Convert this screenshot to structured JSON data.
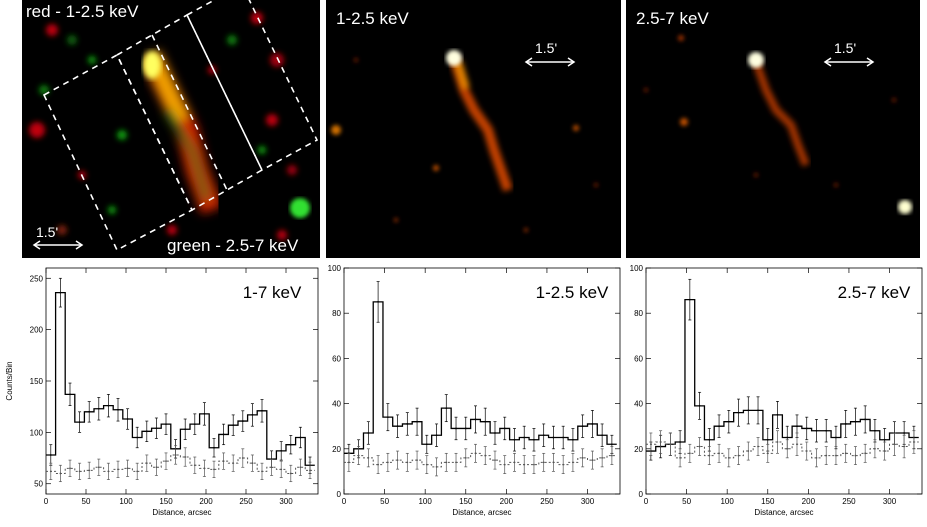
{
  "images": [
    {
      "id": "composite",
      "title": "red - 1-2.5 keV",
      "bottom_label": "green - 2.5-7 keV",
      "scale_label": "1.5'"
    },
    {
      "id": "soft",
      "title": "1-2.5 keV",
      "scale_label": "1.5'"
    },
    {
      "id": "hard",
      "title": "2.5-7 keV",
      "scale_label": "1.5'"
    }
  ],
  "chart_data": [
    {
      "type": "line",
      "label": "1-7 keV",
      "xlabel": "Distance, arcsec",
      "ylabel": "Counts/Bin",
      "xlim": [
        0,
        340
      ],
      "ylim": [
        40,
        260
      ],
      "xticks": [
        0,
        50,
        100,
        150,
        200,
        250,
        300
      ],
      "yticks": [
        50,
        100,
        150,
        200,
        250
      ],
      "bin_width": 12,
      "series": [
        {
          "name": "source",
          "style": "solid",
          "x": [
            0,
            12,
            24,
            36,
            48,
            60,
            72,
            84,
            96,
            108,
            120,
            132,
            144,
            156,
            168,
            180,
            192,
            204,
            216,
            228,
            240,
            252,
            264,
            276,
            288,
            300,
            312,
            324
          ],
          "values": [
            78,
            236,
            137,
            110,
            120,
            123,
            126,
            122,
            113,
            95,
            101,
            104,
            108,
            84,
            103,
            108,
            118,
            85,
            98,
            107,
            111,
            117,
            121,
            74,
            82,
            88,
            95,
            68
          ],
          "errors": [
            10,
            14,
            11,
            10,
            10,
            11,
            11,
            11,
            10,
            10,
            10,
            10,
            10,
            9,
            10,
            10,
            11,
            9,
            10,
            10,
            10,
            11,
            11,
            8,
            9,
            9,
            10,
            8
          ]
        },
        {
          "name": "background",
          "style": "dotted",
          "x": [
            0,
            12,
            24,
            36,
            48,
            60,
            72,
            84,
            96,
            108,
            120,
            132,
            144,
            156,
            168,
            180,
            192,
            204,
            216,
            228,
            240,
            252,
            264,
            276,
            288,
            300,
            312,
            324
          ],
          "values": [
            62,
            60,
            65,
            62,
            63,
            66,
            62,
            64,
            65,
            62,
            70,
            66,
            72,
            78,
            76,
            68,
            65,
            64,
            72,
            70,
            75,
            70,
            62,
            66,
            64,
            60,
            66,
            63
          ],
          "errors": [
            8,
            8,
            8,
            8,
            8,
            8,
            8,
            8,
            8,
            8,
            8,
            8,
            8,
            9,
            9,
            8,
            8,
            8,
            8,
            8,
            9,
            8,
            8,
            8,
            8,
            8,
            8,
            8
          ]
        }
      ]
    },
    {
      "type": "line",
      "label": "1-2.5 keV",
      "xlabel": "Distance, arcsec",
      "ylabel": "",
      "xlim": [
        0,
        340
      ],
      "ylim": [
        0,
        100
      ],
      "xticks": [
        0,
        50,
        100,
        150,
        200,
        250,
        300
      ],
      "yticks": [
        0,
        20,
        40,
        60,
        80,
        100
      ],
      "bin_width": 12,
      "series": [
        {
          "name": "source",
          "style": "solid",
          "x": [
            0,
            12,
            24,
            36,
            48,
            60,
            72,
            84,
            96,
            108,
            120,
            132,
            144,
            156,
            168,
            180,
            192,
            204,
            216,
            228,
            240,
            252,
            264,
            276,
            288,
            300,
            312,
            324
          ],
          "values": [
            18,
            20,
            27,
            85,
            34,
            30,
            31,
            32,
            22,
            26,
            38,
            29,
            29,
            33,
            32,
            27,
            29,
            24,
            25,
            24,
            26,
            25,
            25,
            24,
            30,
            31,
            26,
            22
          ],
          "errors": [
            4,
            4,
            5,
            9,
            6,
            5,
            5,
            6,
            4,
            5,
            6,
            5,
            5,
            6,
            6,
            5,
            5,
            5,
            5,
            5,
            5,
            5,
            5,
            5,
            5,
            6,
            5,
            4
          ]
        },
        {
          "name": "background",
          "style": "dotted",
          "x": [
            0,
            12,
            24,
            36,
            48,
            60,
            72,
            84,
            96,
            108,
            120,
            132,
            144,
            156,
            168,
            180,
            192,
            204,
            216,
            228,
            240,
            252,
            264,
            276,
            288,
            300,
            312,
            324
          ],
          "values": [
            14,
            17,
            16,
            13,
            14,
            15,
            14,
            15,
            13,
            12,
            14,
            14,
            16,
            18,
            17,
            15,
            13,
            14,
            13,
            13,
            14,
            14,
            13,
            14,
            16,
            15,
            16,
            17
          ],
          "errors": [
            4,
            4,
            4,
            4,
            4,
            4,
            4,
            4,
            4,
            4,
            4,
            4,
            4,
            4,
            4,
            4,
            4,
            4,
            4,
            4,
            4,
            4,
            4,
            4,
            4,
            4,
            4,
            4
          ]
        }
      ]
    },
    {
      "type": "line",
      "label": "2.5-7 keV",
      "xlabel": "Distance, arcsec",
      "ylabel": "",
      "xlim": [
        0,
        340
      ],
      "ylim": [
        0,
        100
      ],
      "xticks": [
        0,
        50,
        100,
        150,
        200,
        250,
        300
      ],
      "yticks": [
        0,
        20,
        40,
        60,
        80,
        100
      ],
      "bin_width": 12,
      "series": [
        {
          "name": "source",
          "style": "solid",
          "x": [
            0,
            12,
            24,
            36,
            48,
            60,
            72,
            84,
            96,
            108,
            120,
            132,
            144,
            156,
            168,
            180,
            192,
            204,
            216,
            228,
            240,
            252,
            264,
            276,
            288,
            300,
            312,
            324
          ],
          "values": [
            19,
            21,
            22,
            23,
            86,
            39,
            24,
            30,
            32,
            36,
            37,
            37,
            24,
            35,
            25,
            30,
            29,
            28,
            28,
            25,
            31,
            32,
            33,
            28,
            24,
            27,
            27,
            25
          ],
          "errors": [
            4,
            5,
            5,
            5,
            9,
            6,
            5,
            5,
            5,
            6,
            6,
            6,
            5,
            6,
            5,
            5,
            5,
            5,
            5,
            5,
            6,
            6,
            6,
            5,
            5,
            5,
            5,
            5
          ]
        },
        {
          "name": "background",
          "style": "dotted",
          "x": [
            0,
            12,
            24,
            36,
            48,
            60,
            72,
            84,
            96,
            108,
            120,
            132,
            144,
            156,
            168,
            180,
            192,
            204,
            216,
            228,
            240,
            252,
            264,
            276,
            288,
            300,
            312,
            324
          ],
          "values": [
            22,
            23,
            22,
            16,
            18,
            21,
            17,
            18,
            16,
            17,
            19,
            21,
            18,
            23,
            20,
            22,
            19,
            16,
            17,
            17,
            18,
            17,
            18,
            20,
            19,
            22,
            21,
            23
          ],
          "errors": [
            5,
            5,
            5,
            4,
            4,
            4,
            4,
            4,
            4,
            4,
            4,
            4,
            4,
            5,
            4,
            5,
            4,
            4,
            4,
            4,
            4,
            4,
            4,
            4,
            4,
            5,
            5,
            5
          ]
        }
      ]
    }
  ]
}
